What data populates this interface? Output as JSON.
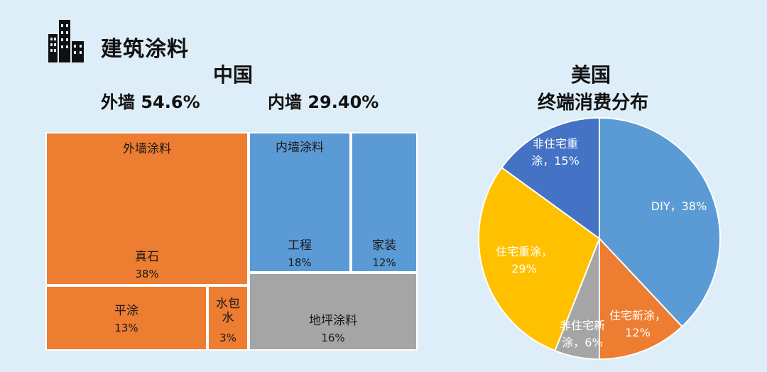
{
  "header": {
    "section_title": "建筑涂料",
    "icon": "building-icon"
  },
  "china": {
    "title": "中国",
    "exterior_stat": "外墙  54.6%",
    "interior_stat": "内墙  29.40%"
  },
  "usa": {
    "title": "美国",
    "subtitle": "终端消费分布"
  },
  "chart_data": [
    {
      "type": "treemap",
      "groups": [
        {
          "label": "外墙涂料",
          "children": [
            {
              "label": "真石",
              "value": 38,
              "display": "38%"
            },
            {
              "label": "平涂",
              "value": 13,
              "display": "13%"
            },
            {
              "label": "水包水",
              "value": 3,
              "display": "3%"
            }
          ]
        },
        {
          "label": "内墙涂料",
          "children": [
            {
              "label": "工程",
              "value": 18,
              "display": "18%"
            },
            {
              "label": "家装",
              "value": 12,
              "display": "12%"
            }
          ]
        },
        {
          "label": "地坪涂料",
          "value": 16,
          "display": "16%"
        }
      ],
      "colors": {
        "exterior": "#ed7d31",
        "interior": "#5b9bd5",
        "floor": "#a5a5a5"
      }
    },
    {
      "type": "pie",
      "slices": [
        {
          "label_line1": "DIY，38%",
          "label_line2": "",
          "value": 38,
          "color": "#5b9bd5"
        },
        {
          "label_line1": "住宅新涂，",
          "label_line2": "12%",
          "value": 12,
          "color": "#ed7d31"
        },
        {
          "label_line1": "非住宅新",
          "label_line2": "涂，6%",
          "value": 6,
          "color": "#a5a5a5"
        },
        {
          "label_line1": "住宅重涂，",
          "label_line2": "29%",
          "value": 29,
          "color": "#ffc000"
        },
        {
          "label_line1": "非住宅重",
          "label_line2": "涂，15%",
          "value": 15,
          "color": "#4472c4"
        }
      ]
    }
  ]
}
